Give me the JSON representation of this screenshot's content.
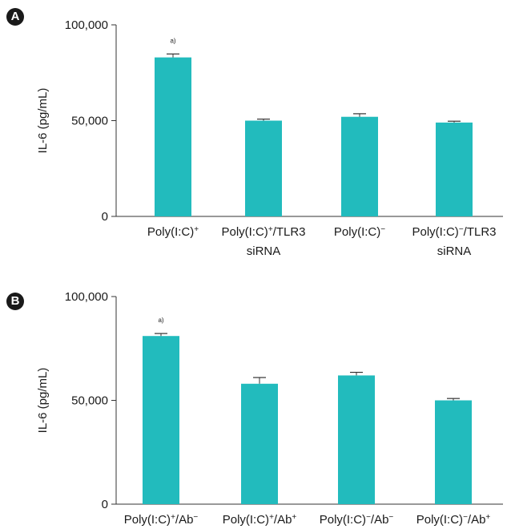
{
  "colors": {
    "bar": "#22bbbd",
    "axis": "#333333",
    "text": "#1a1a1a"
  },
  "chart_data": [
    {
      "panel": "A",
      "type": "bar",
      "ylabel": "IL-6 (pg/mL)",
      "ylim": [
        0,
        100000
      ],
      "yticks": [
        0,
        50000,
        100000
      ],
      "ytick_labels": [
        "0",
        "50,000",
        "100,000"
      ],
      "categories": [
        {
          "main": "Poly(I:C)",
          "sup": "+",
          "tail": "",
          "line2": ""
        },
        {
          "main": "Poly(I:C)",
          "sup": "+",
          "tail": "/TLR3",
          "line2": "siRNA"
        },
        {
          "main": "Poly(I:C)",
          "sup": "−",
          "tail": "",
          "line2": ""
        },
        {
          "main": "Poly(I:C)",
          "sup": "−",
          "tail": "/TLR3",
          "line2": "siRNA"
        }
      ],
      "values": [
        83000,
        50000,
        52000,
        49000
      ],
      "errors": [
        1800,
        800,
        1600,
        700
      ],
      "annotations": [
        {
          "index": 0,
          "text": "a)"
        }
      ],
      "grid": false
    },
    {
      "panel": "B",
      "type": "bar",
      "ylabel": "IL-6 (pg/mL)",
      "ylim": [
        0,
        100000
      ],
      "yticks": [
        0,
        50000,
        100000
      ],
      "ytick_labels": [
        "0",
        "50,000",
        "100,000"
      ],
      "categories": [
        {
          "main": "Poly(I:C)",
          "sup": "+",
          "tail": "/Ab",
          "sup2": "−"
        },
        {
          "main": "Poly(I:C)",
          "sup": "+",
          "tail": "/Ab",
          "sup2": "+"
        },
        {
          "main": "Poly(I:C)",
          "sup": "−",
          "tail": "/Ab",
          "sup2": "−"
        },
        {
          "main": "Poly(I:C)",
          "sup": "−",
          "tail": "/Ab",
          "sup2": "+"
        }
      ],
      "values": [
        81000,
        58000,
        62000,
        50000
      ],
      "errors": [
        1200,
        3000,
        1500,
        900
      ],
      "annotations": [
        {
          "index": 0,
          "text": "a)"
        }
      ],
      "grid": false
    }
  ]
}
